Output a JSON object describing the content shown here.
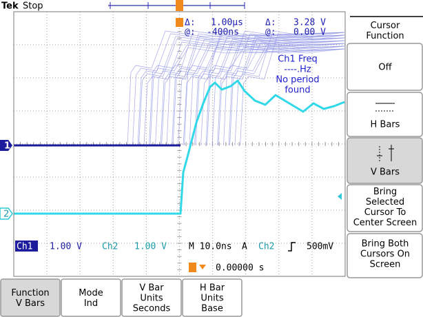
{
  "header": {
    "brand": "Tek",
    "status": "Stop"
  },
  "cursor_readout": {
    "delta_label": "Δ:",
    "delta_time": "1.00µs",
    "delta_v_label": "Δ:",
    "delta_voltage": "3.28 V",
    "at_label": "@:",
    "at_time": "-400ns",
    "at_v_label": "@:",
    "at_voltage": "0.00 V"
  },
  "measurement": [
    "Ch1 Freq",
    "----.Hz",
    "No period",
    "found"
  ],
  "channel_markers": [
    "1",
    "2"
  ],
  "status": {
    "ch1": "Ch1",
    "ch1_scale": "1.00 V",
    "ch2": "Ch2",
    "ch2_scale": "1.00 V",
    "timebase": "M 10.0ns",
    "trigger_mode": "A",
    "trigger_source": "Ch2",
    "trigger_level": "500mV",
    "trigger_position": "0.00000 s"
  },
  "side_menu": {
    "title": [
      "Cursor",
      "Function"
    ],
    "buttons": [
      [
        "Off"
      ],
      [
        "H Bars"
      ],
      [
        "V Bars"
      ],
      [
        "Bring",
        "Selected",
        "Cursor To",
        "Center Screen"
      ],
      [
        "Bring Both",
        "Cursors On",
        "Screen"
      ]
    ]
  },
  "bottom_menu": [
    [
      "Function",
      "V Bars"
    ],
    [
      "Mode",
      "Ind"
    ],
    [
      "V Bar",
      "Units",
      "Seconds"
    ],
    [
      "H Bar",
      "Units",
      "Base"
    ]
  ]
}
